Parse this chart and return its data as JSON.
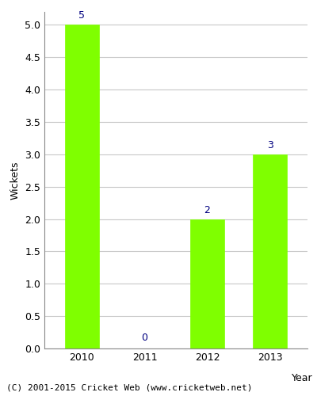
{
  "categories": [
    "2010",
    "2011",
    "2012",
    "2013"
  ],
  "values": [
    5,
    0,
    2,
    3
  ],
  "bar_color": "#7fff00",
  "bar_edge_color": "#7fff00",
  "title": "",
  "xlabel": "Year",
  "ylabel": "Wickets",
  "ylim": [
    0,
    5.2
  ],
  "yticks": [
    0.0,
    0.5,
    1.0,
    1.5,
    2.0,
    2.5,
    3.0,
    3.5,
    4.0,
    4.5,
    5.0
  ],
  "label_color": "#000080",
  "label_fontsize": 9,
  "axis_label_fontsize": 9,
  "tick_fontsize": 9,
  "background_color": "#ffffff",
  "grid_color": "#c8c8c8",
  "footer_text": "(C) 2001-2015 Cricket Web (www.cricketweb.net)",
  "footer_fontsize": 8,
  "bar_width": 0.55
}
